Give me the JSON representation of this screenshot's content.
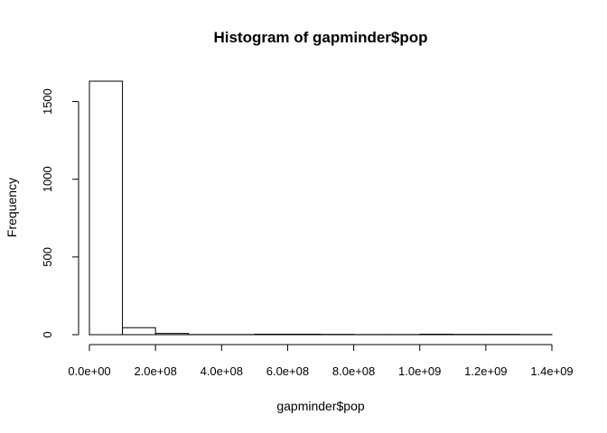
{
  "chart_data": {
    "type": "bar",
    "title": "Histogram of gapminder$pop",
    "xlabel": "gapminder$pop",
    "ylabel": "Frequency",
    "bin_edges": [
      0,
      100000000,
      200000000,
      300000000,
      400000000,
      500000000,
      600000000,
      700000000,
      800000000,
      900000000,
      1000000000,
      1100000000,
      1200000000,
      1300000000,
      1400000000
    ],
    "values": [
      1631,
      45,
      8,
      1,
      1,
      3,
      3,
      2,
      1,
      1,
      3,
      2,
      2,
      1
    ],
    "xlim": [
      0,
      1400000000
    ],
    "ylim": [
      0,
      1631
    ],
    "x_ticks": [
      {
        "value": 0,
        "label": "0.0e+00"
      },
      {
        "value": 200000000,
        "label": "2.0e+08"
      },
      {
        "value": 400000000,
        "label": "4.0e+08"
      },
      {
        "value": 600000000,
        "label": "6.0e+08"
      },
      {
        "value": 800000000,
        "label": "8.0e+08"
      },
      {
        "value": 1000000000,
        "label": "1.0e+09"
      },
      {
        "value": 1200000000,
        "label": "1.2e+09"
      },
      {
        "value": 1400000000,
        "label": "1.4e+09"
      }
    ],
    "y_ticks": [
      {
        "value": 0,
        "label": "0"
      },
      {
        "value": 500,
        "label": "500"
      },
      {
        "value": 1000,
        "label": "1000"
      },
      {
        "value": 1500,
        "label": "1500"
      }
    ],
    "grid": false,
    "bar_fill": "#ffffff",
    "bar_stroke": "#000000"
  }
}
